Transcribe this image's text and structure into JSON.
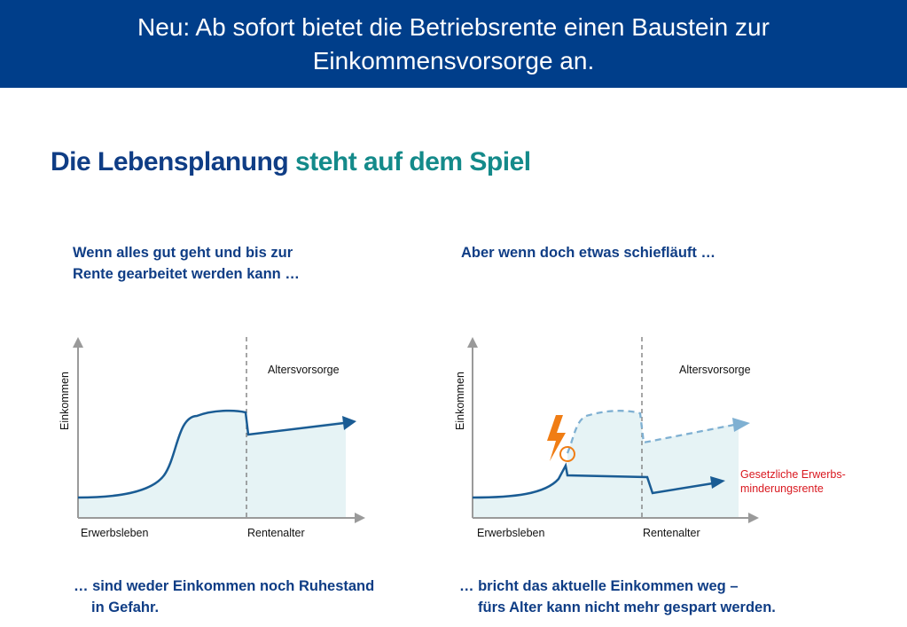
{
  "banner": {
    "text": "Neu: Ab sofort bietet die Betriebsrente einen Baustein zur Einkommensvorsorge an."
  },
  "headline": {
    "part1": "Die Lebensplanung",
    "part2": "steht auf dem Spiel"
  },
  "left_panel": {
    "intro_line1": "Wenn alles gut geht und bis zur",
    "intro_line2": "Rente gearbeitet werden kann …",
    "y_axis_label": "Einkommen",
    "x_label_work": "Erwerbsleben",
    "x_label_retire": "Rentenalter",
    "region_label": "Altersvorsorge",
    "outro_line1": "… sind weder Einkommen noch Ruhestand",
    "outro_line2": "in Gefahr."
  },
  "right_panel": {
    "intro": "Aber wenn doch etwas schiefläuft …",
    "y_axis_label": "Einkommen",
    "x_label_work": "Erwerbsleben",
    "x_label_retire": "Rentenalter",
    "region_label": "Altersvorsorge",
    "pension_label_line1": "Gesetzliche Erwerbs-",
    "pension_label_line2": "minderungsrente",
    "outro_line1": "… bricht das aktuelle Einkommen weg –",
    "outro_line2": "fürs Alter kann nicht mehr gespart werden."
  },
  "colors": {
    "banner": "#003e8a",
    "headline_dark": "#0f3d85",
    "headline_teal": "#148a8a",
    "curve": "#1a5c94",
    "curve_dashed": "#7fb0d2",
    "area_fill": "#e6f3f5",
    "axis": "#9a9a9a",
    "lightning": "#f07d14",
    "warning_text": "#d9181f"
  },
  "icons": {
    "event_marker": "lightning-bolt-icon"
  }
}
